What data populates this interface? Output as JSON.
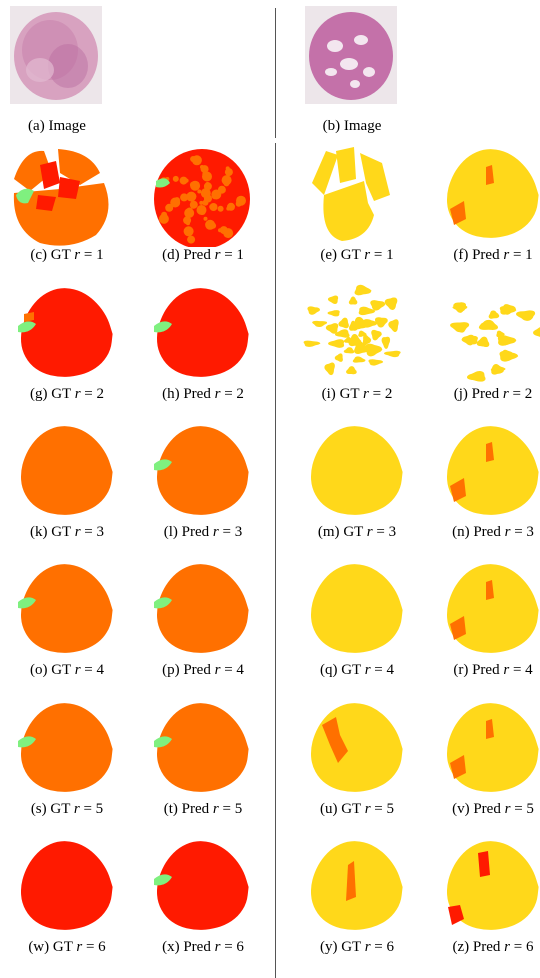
{
  "figure": {
    "header": [
      {
        "caption": "(a) Image"
      },
      {
        "caption": "(b) Image"
      }
    ],
    "rows": [
      [
        {
          "letter": "(c)",
          "kind": "GT",
          "r": "1",
          "colors": [
            "#ff7000",
            "#ff1a00",
            "#7ff07f"
          ]
        },
        {
          "letter": "(d)",
          "kind": "Pred",
          "r": "1",
          "colors": [
            "#ff1a00",
            "#ff7000",
            "#7ff07f"
          ]
        },
        {
          "letter": "(e)",
          "kind": "GT",
          "r": "1",
          "colors": [
            "#ff7000",
            "#ffd81a"
          ]
        },
        {
          "letter": "(f)",
          "kind": "Pred",
          "r": "1",
          "colors": [
            "#ffd81a",
            "#ff7000"
          ]
        }
      ],
      [
        {
          "letter": "(g)",
          "kind": "GT",
          "r": "2",
          "colors": [
            "#ff1a00",
            "#7ff07f",
            "#ff7000"
          ]
        },
        {
          "letter": "(h)",
          "kind": "Pred",
          "r": "2",
          "colors": [
            "#ff1a00",
            "#7ff07f"
          ]
        },
        {
          "letter": "(i)",
          "kind": "GT",
          "r": "2",
          "colors": [
            "#ffd81a"
          ]
        },
        {
          "letter": "(j)",
          "kind": "Pred",
          "r": "2",
          "colors": [
            "#ffd81a"
          ]
        }
      ],
      [
        {
          "letter": "(k)",
          "kind": "GT",
          "r": "3",
          "colors": [
            "#ff7000"
          ]
        },
        {
          "letter": "(l)",
          "kind": "Pred",
          "r": "3",
          "colors": [
            "#ff7000",
            "#7ff07f"
          ]
        },
        {
          "letter": "(m)",
          "kind": "GT",
          "r": "3",
          "colors": [
            "#ffd81a"
          ]
        },
        {
          "letter": "(n)",
          "kind": "Pred",
          "r": "3",
          "colors": [
            "#ffd81a",
            "#ff7000"
          ]
        }
      ],
      [
        {
          "letter": "(o)",
          "kind": "GT",
          "r": "4",
          "colors": [
            "#ff7000",
            "#7ff07f"
          ]
        },
        {
          "letter": "(p)",
          "kind": "Pred",
          "r": "4",
          "colors": [
            "#ff7000",
            "#7ff07f"
          ]
        },
        {
          "letter": "(q)",
          "kind": "GT",
          "r": "4",
          "colors": [
            "#ffd81a"
          ]
        },
        {
          "letter": "(r)",
          "kind": "Pred",
          "r": "4",
          "colors": [
            "#ffd81a",
            "#ff7000"
          ]
        }
      ],
      [
        {
          "letter": "(s)",
          "kind": "GT",
          "r": "5",
          "colors": [
            "#ff7000",
            "#7ff07f"
          ]
        },
        {
          "letter": "(t)",
          "kind": "Pred",
          "r": "5",
          "colors": [
            "#ff7000",
            "#7ff07f"
          ]
        },
        {
          "letter": "(u)",
          "kind": "GT",
          "r": "5",
          "colors": [
            "#ffd81a",
            "#ff7000"
          ]
        },
        {
          "letter": "(v)",
          "kind": "Pred",
          "r": "5",
          "colors": [
            "#ffd81a",
            "#ff7000"
          ]
        }
      ],
      [
        {
          "letter": "(w)",
          "kind": "GT",
          "r": "6",
          "colors": [
            "#ff1a00"
          ]
        },
        {
          "letter": "(x)",
          "kind": "Pred",
          "r": "6",
          "colors": [
            "#ff1a00",
            "#7ff07f"
          ]
        },
        {
          "letter": "(y)",
          "kind": "GT",
          "r": "6",
          "colors": [
            "#ffd81a",
            "#ff7000"
          ]
        },
        {
          "letter": "(z)",
          "kind": "Pred",
          "r": "6",
          "colors": [
            "#ffd81a",
            "#ff1a00"
          ]
        }
      ]
    ]
  }
}
